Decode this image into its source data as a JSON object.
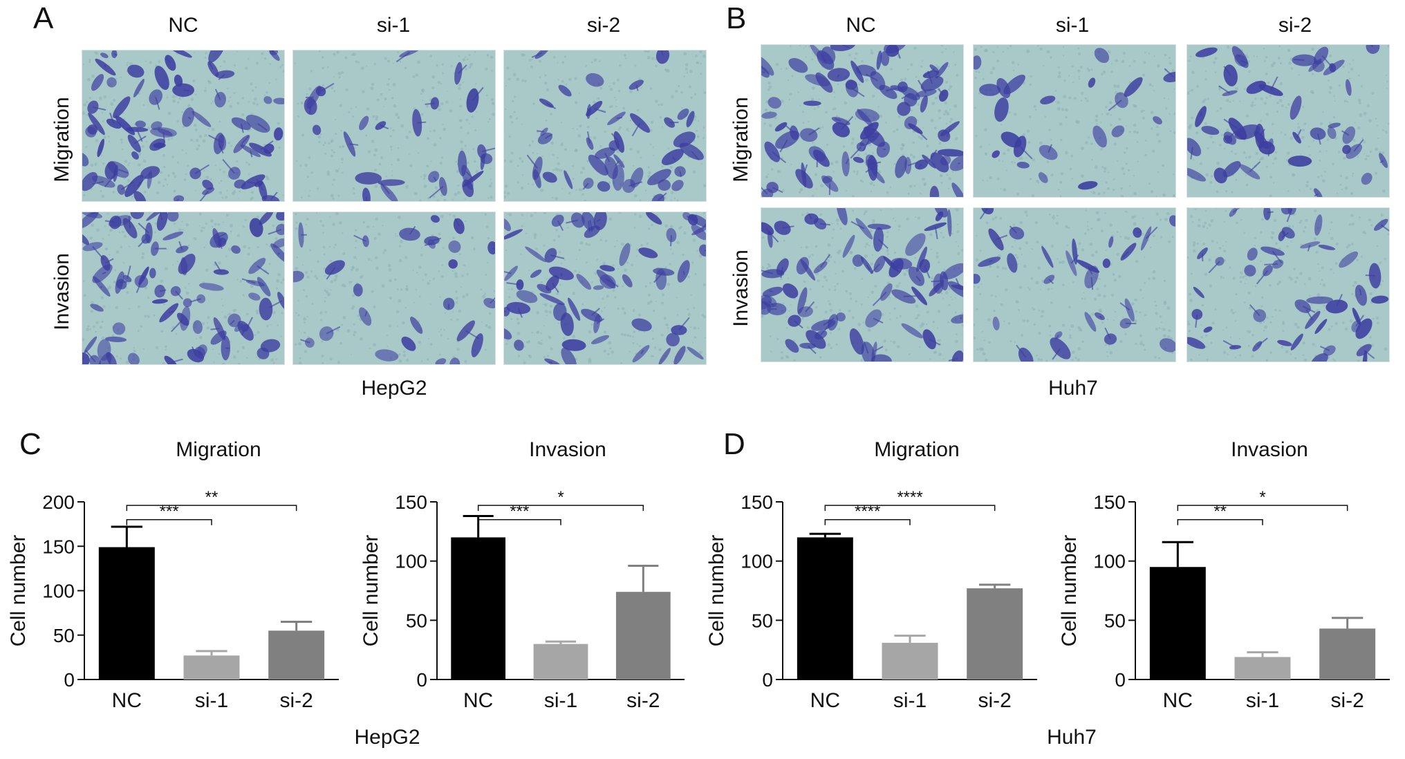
{
  "colors": {
    "nc_bar": "#000000",
    "si1_bar": "#a6a6a6",
    "si2_bar": "#808080",
    "stain_bg": "#a9c8c8",
    "stain_cell": "#3c3ea0"
  },
  "panels": {
    "A": {
      "letter": "A",
      "cell_line": "HepG2",
      "columns": [
        "NC",
        "si-1",
        "si-2"
      ],
      "rows": [
        "Migration",
        "Invasion"
      ]
    },
    "B": {
      "letter": "B",
      "cell_line": "Huh7",
      "columns": [
        "NC",
        "si-1",
        "si-2"
      ],
      "rows": [
        "Migration",
        "Invasion"
      ]
    },
    "C": {
      "letter": "C",
      "cell_line": "HepG2"
    },
    "D": {
      "letter": "D",
      "cell_line": "Huh7"
    }
  },
  "chart_data": [
    {
      "type": "bar",
      "panel": "C",
      "title": "Migration",
      "ylabel": "Cell number",
      "categories": [
        "NC",
        "si-1",
        "si-2"
      ],
      "values": [
        149,
        27,
        55
      ],
      "errors": [
        23,
        5,
        10
      ],
      "ylim": [
        0,
        200
      ],
      "yticks": [
        0,
        50,
        100,
        150,
        200
      ],
      "significance": [
        {
          "from": 0,
          "to": 1,
          "label": "***",
          "y": 180
        },
        {
          "from": 0,
          "to": 2,
          "label": "**",
          "y": 196
        }
      ]
    },
    {
      "type": "bar",
      "panel": "C",
      "title": "Invasion",
      "ylabel": "Cell number",
      "categories": [
        "NC",
        "si-1",
        "si-2"
      ],
      "values": [
        120,
        30,
        74
      ],
      "errors": [
        18,
        2,
        22
      ],
      "ylim": [
        0,
        150
      ],
      "yticks": [
        0,
        50,
        100,
        150
      ],
      "significance": [
        {
          "from": 0,
          "to": 1,
          "label": "***",
          "y": 135
        },
        {
          "from": 0,
          "to": 2,
          "label": "*",
          "y": 147
        }
      ]
    },
    {
      "type": "bar",
      "panel": "D",
      "title": "Migration",
      "ylabel": "Cell number",
      "categories": [
        "NC",
        "si-1",
        "si-2"
      ],
      "values": [
        120,
        31,
        77
      ],
      "errors": [
        3,
        6,
        3
      ],
      "ylim": [
        0,
        150
      ],
      "yticks": [
        0,
        50,
        100,
        150
      ],
      "significance": [
        {
          "from": 0,
          "to": 1,
          "label": "****",
          "y": 135
        },
        {
          "from": 0,
          "to": 2,
          "label": "****",
          "y": 147
        }
      ]
    },
    {
      "type": "bar",
      "panel": "D",
      "title": "Invasion",
      "ylabel": "Cell number",
      "categories": [
        "NC",
        "si-1",
        "si-2"
      ],
      "values": [
        95,
        19,
        43
      ],
      "errors": [
        21,
        4,
        9
      ],
      "ylim": [
        0,
        150
      ],
      "yticks": [
        0,
        50,
        100,
        150
      ],
      "significance": [
        {
          "from": 0,
          "to": 1,
          "label": "**",
          "y": 135
        },
        {
          "from": 0,
          "to": 2,
          "label": "*",
          "y": 147
        }
      ]
    }
  ]
}
